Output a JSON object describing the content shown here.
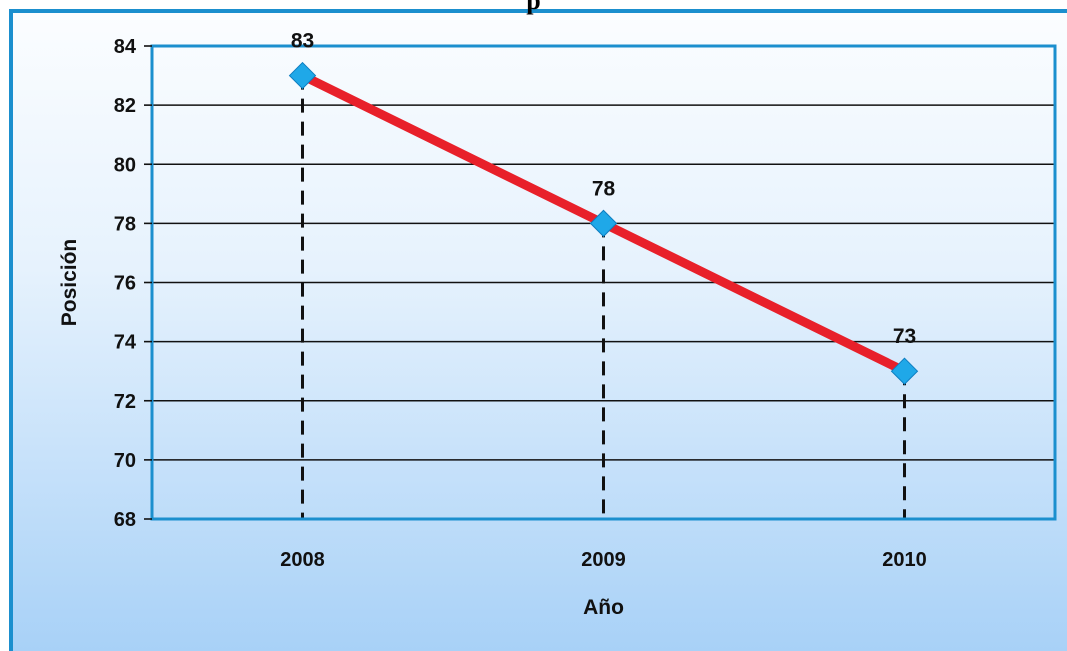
{
  "chart_data": {
    "type": "line",
    "title": "",
    "xlabel": "Año",
    "ylabel": "Posición",
    "categories": [
      "2008",
      "2009",
      "2010"
    ],
    "series": [
      {
        "values": [
          83,
          78,
          73
        ],
        "color": "#e8202a",
        "marker_color": "#1fa8e8"
      }
    ],
    "data_labels": [
      "83",
      "78",
      "73"
    ],
    "ylim": [
      68,
      84
    ],
    "yticks": [
      "68",
      "70",
      "72",
      "74",
      "76",
      "78",
      "80",
      "82",
      "84"
    ],
    "grid": "horizontal",
    "drop_lines": "dashed",
    "legend": "none",
    "title_visible_fragment": "p"
  }
}
